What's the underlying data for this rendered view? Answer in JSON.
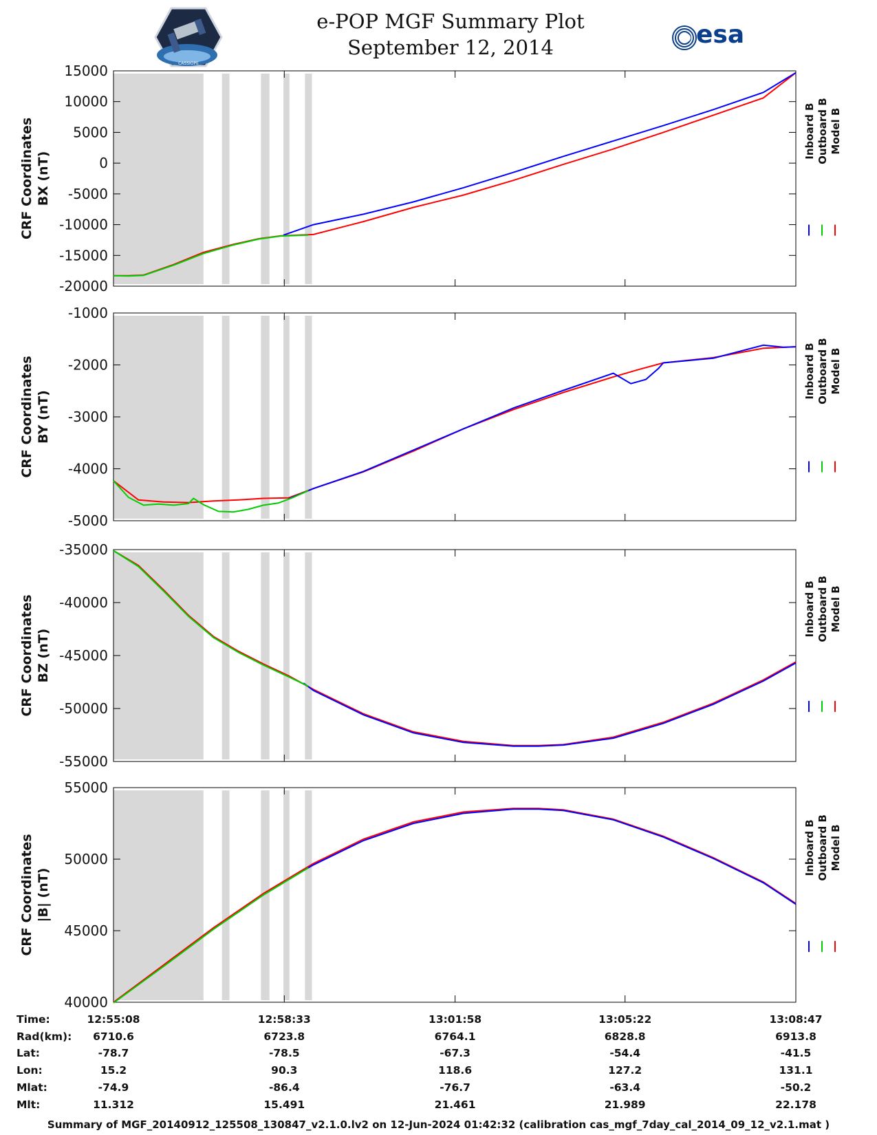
{
  "header": {
    "title_line1": "e-POP MGF Summary Plot",
    "title_line2": "September 12, 2014",
    "logo_left_name": "CASSIOPE",
    "logo_right_text": "esa"
  },
  "colors": {
    "inboard": "#0000ff",
    "outboard": "#00cc00",
    "model": "#ff0000",
    "shade": "#d8d8d8"
  },
  "chart_data": [
    {
      "type": "line",
      "ylabel_line1": "CRF Coordinates",
      "ylabel_line2": "BX (nT)",
      "ylim": [
        -20000,
        15000
      ],
      "yticks": [
        "15000",
        "10000",
        "5000",
        "0",
        "-5000",
        "-10000",
        "-15000",
        "-20000"
      ],
      "ytick_values": [
        15000,
        10000,
        5000,
        0,
        -5000,
        -10000,
        -15000,
        -20000
      ],
      "legend": [
        "Inboard B",
        "Outboard B",
        "Model B"
      ],
      "series": [
        {
          "name": "Model B",
          "t": [
            0,
            0.3,
            0.6,
            1.2,
            1.8,
            2.4,
            2.9,
            3.35,
            4,
            5,
            6,
            7,
            8,
            9,
            10,
            11,
            12,
            13,
            13.65
          ],
          "v": [
            -18300,
            -18300,
            -18200,
            -16500,
            -14500,
            -13200,
            -12300,
            -11800,
            -11600,
            -9500,
            -7200,
            -5200,
            -2800,
            -200,
            2300,
            5000,
            7800,
            10600,
            14700
          ]
        },
        {
          "name": "Inboard B",
          "t": [
            3.4,
            4,
            5,
            6,
            7,
            8,
            9,
            10,
            11,
            12,
            13,
            13.65
          ],
          "v": [
            -11700,
            -10000,
            -8300,
            -6300,
            -4000,
            -1500,
            1100,
            3600,
            6100,
            8700,
            11500,
            14700
          ]
        },
        {
          "name": "Outboard B",
          "t": [
            0,
            0.3,
            0.6,
            1.2,
            1.8,
            2.4,
            2.9,
            3.35,
            3.9
          ],
          "v": [
            -18300,
            -18350,
            -18250,
            -16600,
            -14700,
            -13300,
            -12350,
            -11850,
            -11700
          ]
        }
      ]
    },
    {
      "type": "line",
      "ylabel_line1": "CRF Coordinates",
      "ylabel_line2": "BY (nT)",
      "ylim": [
        -5000,
        -1000
      ],
      "yticks": [
        "-1000",
        "-2000",
        "-3000",
        "-4000",
        "-5000"
      ],
      "ytick_values": [
        -1000,
        -2000,
        -3000,
        -4000,
        -5000
      ],
      "legend": [
        "Inboard B",
        "Outboard B",
        "Model B"
      ],
      "series": [
        {
          "name": "Model B",
          "t": [
            0,
            0.5,
            1,
            1.5,
            2,
            2.5,
            3,
            3.5,
            4,
            5,
            6,
            7,
            8,
            9,
            10,
            10.5,
            11,
            12,
            13,
            13.65
          ],
          "v": [
            -4230,
            -4600,
            -4640,
            -4650,
            -4620,
            -4600,
            -4570,
            -4560,
            -4380,
            -4060,
            -3660,
            -3230,
            -2860,
            -2530,
            -2230,
            -2090,
            -1960,
            -1860,
            -1680,
            -1650
          ]
        },
        {
          "name": "Inboard B",
          "t": [
            3.5,
            4,
            5,
            6,
            7,
            8,
            9,
            10,
            10.35,
            10.65,
            10.9,
            11,
            12,
            13,
            13.4,
            13.65
          ],
          "v": [
            -4580,
            -4380,
            -4050,
            -3640,
            -3230,
            -2830,
            -2490,
            -2160,
            -2360,
            -2280,
            -2070,
            -1960,
            -1870,
            -1620,
            -1660,
            -1650
          ]
        },
        {
          "name": "Outboard B",
          "t": [
            0,
            0.3,
            0.6,
            0.9,
            1.2,
            1.5,
            1.6,
            1.8,
            2.1,
            2.4,
            2.7,
            3.0,
            3.3,
            3.6,
            3.9
          ],
          "v": [
            -4230,
            -4550,
            -4700,
            -4680,
            -4700,
            -4670,
            -4570,
            -4690,
            -4820,
            -4830,
            -4780,
            -4700,
            -4660,
            -4550,
            -4420
          ]
        }
      ]
    },
    {
      "type": "line",
      "ylabel_line1": "CRF Coordinates",
      "ylabel_line2": "BZ (nT)",
      "ylim": [
        -55000,
        -35000
      ],
      "yticks": [
        "-35000",
        "-40000",
        "-45000",
        "-50000",
        "-55000"
      ],
      "ytick_values": [
        -35000,
        -40000,
        -45000,
        -50000,
        -55000
      ],
      "legend": [
        "Inboard B",
        "Outboard B",
        "Model B"
      ],
      "series": [
        {
          "name": "Model B",
          "t": [
            0,
            0.5,
            1,
            1.5,
            2,
            2.5,
            3,
            3.5,
            4,
            5,
            6,
            7,
            8,
            8.5,
            9,
            10,
            11,
            12,
            13,
            13.65
          ],
          "v": [
            -35100,
            -36500,
            -38800,
            -41200,
            -43200,
            -44600,
            -45800,
            -46900,
            -48200,
            -50500,
            -52200,
            -53100,
            -53500,
            -53500,
            -53400,
            -52700,
            -51300,
            -49500,
            -47300,
            -45600
          ]
        },
        {
          "name": "Inboard B",
          "t": [
            3.8,
            4,
            5,
            6,
            7,
            8,
            8.5,
            9,
            10,
            11,
            12,
            13,
            13.65
          ],
          "v": [
            -47600,
            -48300,
            -50600,
            -52300,
            -53200,
            -53550,
            -53550,
            -53450,
            -52800,
            -51400,
            -49600,
            -47400,
            -45700
          ]
        },
        {
          "name": "Outboard B",
          "t": [
            0,
            0.5,
            1,
            1.5,
            2,
            2.5,
            3,
            3.5,
            3.9
          ],
          "v": [
            -35100,
            -36600,
            -38900,
            -41300,
            -43300,
            -44700,
            -45900,
            -47000,
            -47900
          ]
        }
      ]
    },
    {
      "type": "line",
      "ylabel_line1": "CRF Coordinates",
      "ylabel_line2": "|B| (nT)",
      "ylim": [
        40000,
        55000
      ],
      "yticks": [
        "55000",
        "50000",
        "45000",
        "40000"
      ],
      "ytick_values": [
        55000,
        50000,
        45000,
        40000
      ],
      "legend": [
        "Inboard B",
        "Outboard B",
        "Model B"
      ],
      "series": [
        {
          "name": "Model B",
          "t": [
            0,
            1,
            2,
            3,
            4,
            5,
            6,
            7,
            8,
            8.5,
            9,
            10,
            11,
            12,
            13,
            13.65
          ],
          "v": [
            40000,
            42600,
            45200,
            47600,
            49700,
            51400,
            52600,
            53300,
            53550,
            53550,
            53450,
            52800,
            51600,
            50100,
            48400,
            46900
          ]
        },
        {
          "name": "Inboard B",
          "t": [
            3.8,
            4,
            5,
            6,
            7,
            8,
            8.5,
            9,
            10,
            11,
            12,
            13,
            13.65
          ],
          "v": [
            49200,
            49600,
            51300,
            52500,
            53200,
            53500,
            53500,
            53400,
            52750,
            51550,
            50050,
            48350,
            46850
          ]
        },
        {
          "name": "Outboard B",
          "t": [
            0,
            1,
            2,
            3,
            3.9
          ],
          "v": [
            39950,
            42500,
            45100,
            47500,
            49400
          ]
        }
      ]
    }
  ],
  "time_axis": {
    "tlim_minutes": [
      0,
      13.65
    ],
    "xtick_minutes": [
      0,
      3.4167,
      6.8333,
      10.2333,
      13.65
    ],
    "shaded_intervals_minutes": [
      [
        0,
        1.8
      ],
      [
        2.17,
        2.32
      ],
      [
        2.95,
        3.12
      ],
      [
        3.4,
        3.52
      ],
      [
        3.83,
        3.97
      ]
    ]
  },
  "ephemeris": {
    "labels": [
      "Time:",
      "Rad(km):",
      "Lat:",
      "Lon:",
      "Mlat:",
      "Mlt:"
    ],
    "columns": [
      [
        "12:55:08",
        "6710.6",
        "-78.7",
        "15.2",
        "-74.9",
        "11.312"
      ],
      [
        "12:58:33",
        "6723.8",
        "-78.5",
        "90.3",
        "-86.4",
        "15.491"
      ],
      [
        "13:01:58",
        "6764.1",
        "-67.3",
        "118.6",
        "-76.7",
        "21.461"
      ],
      [
        "13:05:22",
        "6828.8",
        "-54.4",
        "127.2",
        "-63.4",
        "21.989"
      ],
      [
        "13:08:47",
        "6913.8",
        "-41.5",
        "131.1",
        "-50.2",
        "22.178"
      ]
    ]
  },
  "footer": "Summary of MGF_20140912_125508_130847_v2.1.0.lv2 on 12-Jun-2024 01:42:32 (calibration cas_mgf_7day_cal_2014_09_12_v2.1.mat )"
}
